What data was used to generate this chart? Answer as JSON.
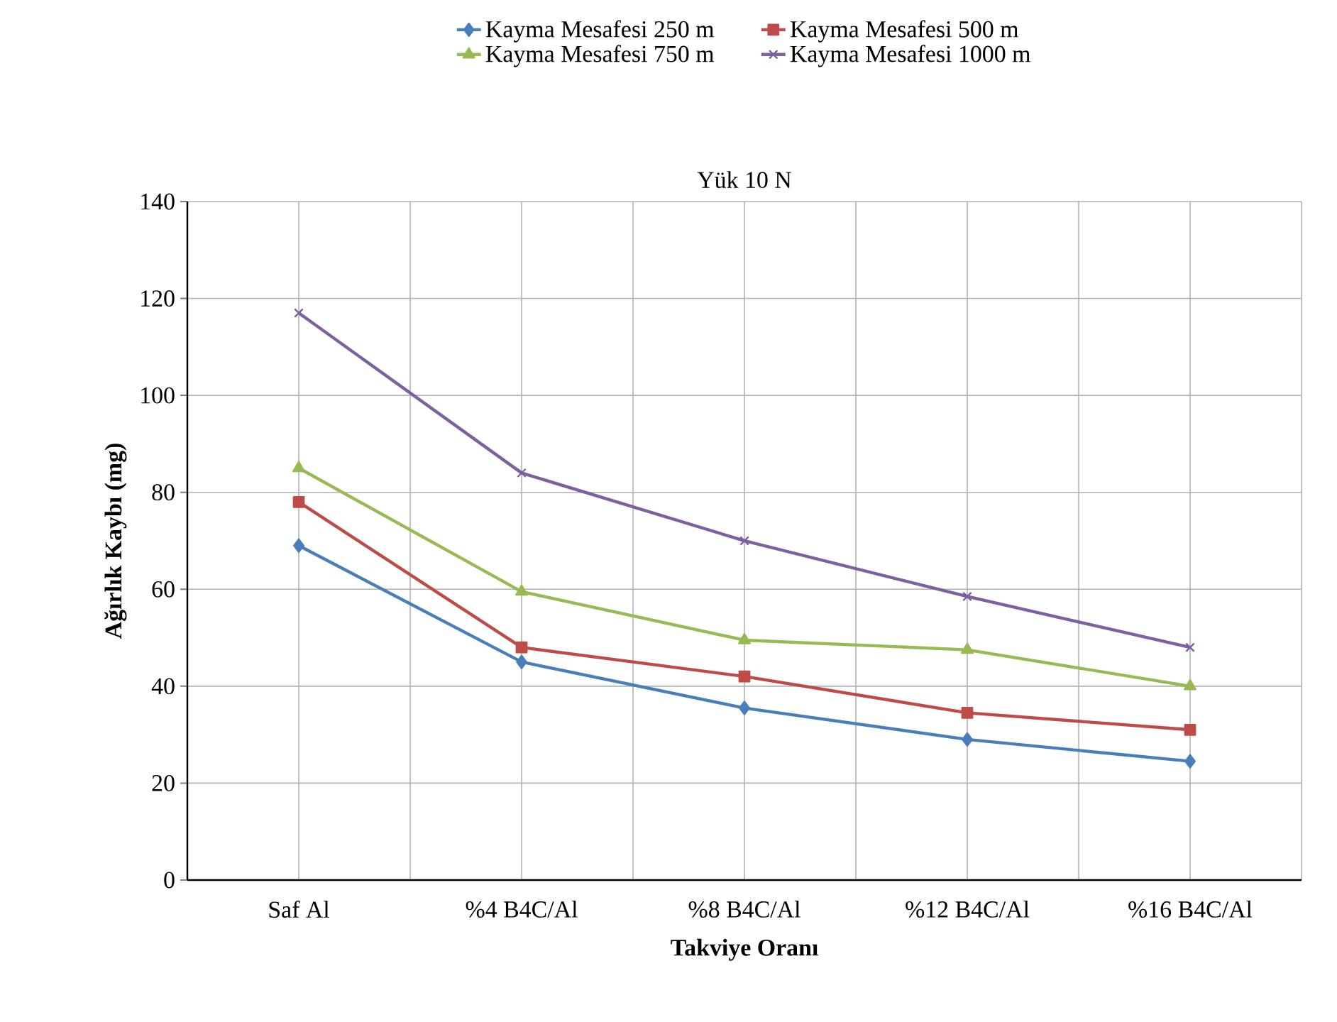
{
  "chart_data": {
    "type": "line",
    "title": "Yük 10 N",
    "xlabel": "Takviye Oranı",
    "ylabel": "Ağırlık Kaybı (mg)",
    "categories": [
      "Saf Al",
      "%4 B4C/Al",
      "%8 B4C/Al",
      "%12 B4C/Al",
      "%16 B4C/Al"
    ],
    "series": [
      {
        "name": "Kayma Mesafesi 250 m",
        "color": "#4a7ebb",
        "marker": "diamond",
        "values": [
          69,
          45,
          35.5,
          29,
          24.5
        ]
      },
      {
        "name": "Kayma Mesafesi 500 m",
        "color": "#be4b48",
        "marker": "square",
        "values": [
          78,
          48,
          42,
          34.5,
          31
        ]
      },
      {
        "name": "Kayma Mesafesi 750 m",
        "color": "#98b954",
        "marker": "triangle",
        "values": [
          85,
          59.5,
          49.5,
          47.5,
          40
        ]
      },
      {
        "name": "Kayma Mesafesi 1000 m",
        "color": "#7d60a0",
        "marker": "cross",
        "values": [
          117,
          84,
          70,
          58.5,
          48
        ]
      }
    ],
    "ylim": [
      0,
      140
    ],
    "yticks": [
      0,
      20,
      40,
      60,
      80,
      100,
      120,
      140
    ],
    "grid": true,
    "legend": "top",
    "line_style": "solid"
  }
}
